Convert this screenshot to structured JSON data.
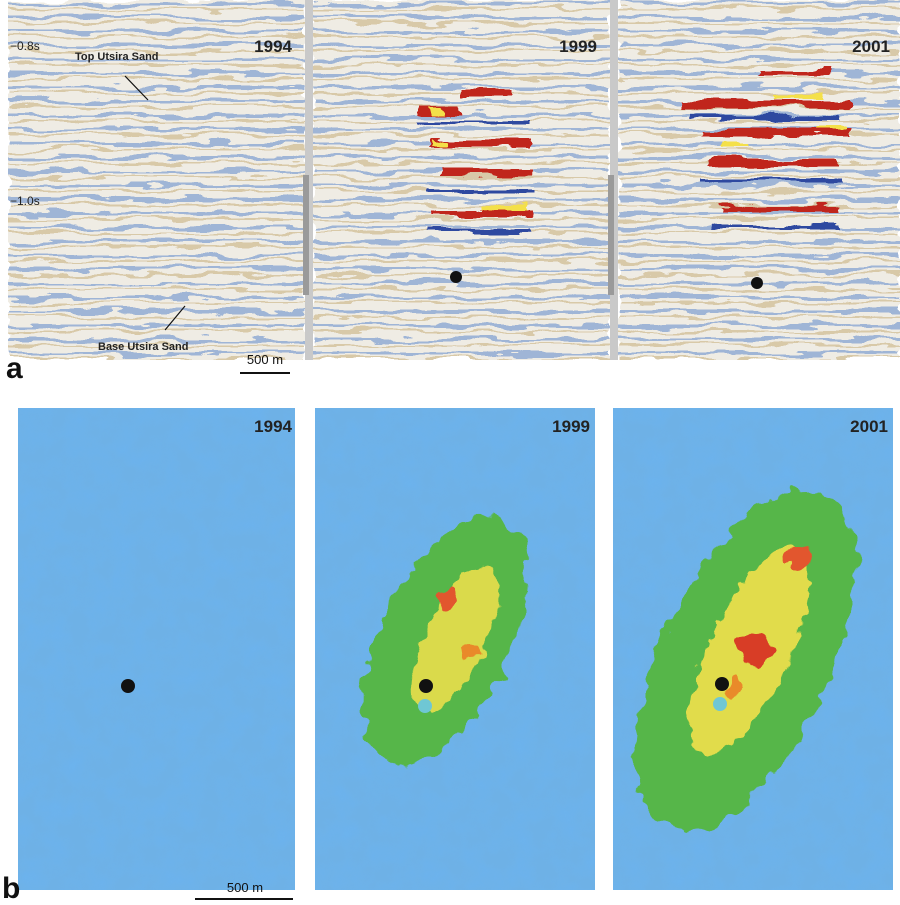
{
  "panel_a": {
    "label": "a",
    "time_labels": [
      "−0.8s",
      "−1.0s"
    ],
    "annotations": [
      "Top Utsira Sand",
      "Base Utsira Sand"
    ],
    "scale_bar": "500 m",
    "panels": [
      {
        "year": "1994"
      },
      {
        "year": "1999"
      },
      {
        "year": "2001"
      }
    ]
  },
  "panel_b": {
    "label": "b",
    "scale_bar": "500 m",
    "panels": [
      {
        "year": "1994"
      },
      {
        "year": "1999"
      },
      {
        "year": "2001"
      }
    ]
  }
}
